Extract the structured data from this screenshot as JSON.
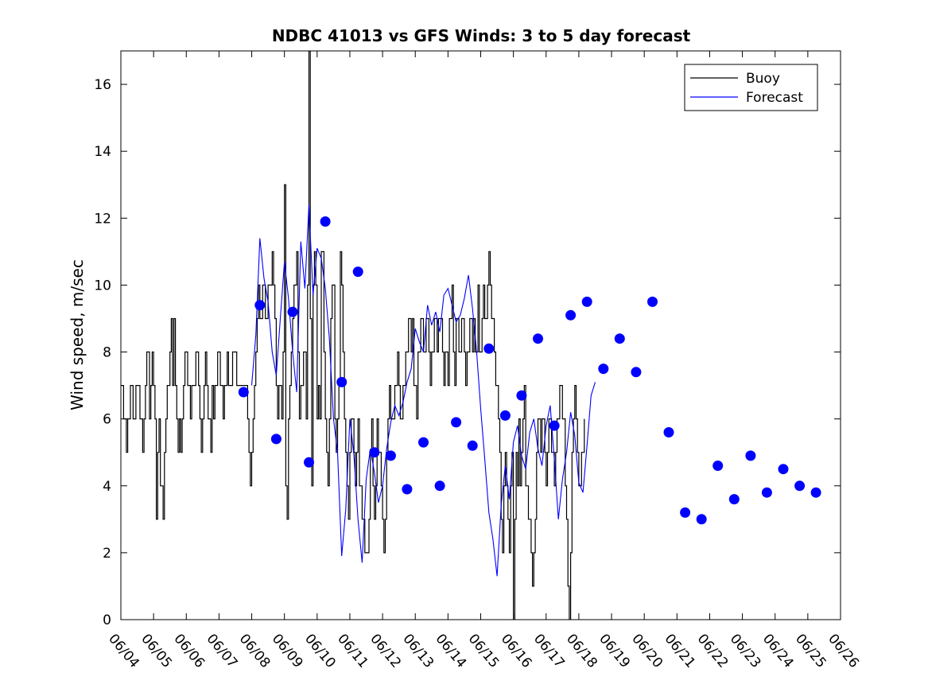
{
  "chart_data": {
    "type": "line",
    "title": "NDBC 41013 vs GFS Winds: 3 to 5 day forecast",
    "xlabel": "",
    "ylabel": "Wind speed, m/sec",
    "xlim": [
      "06/04",
      "06/26"
    ],
    "ylim": [
      0,
      17
    ],
    "x_tick_labels": [
      "06/04",
      "06/05",
      "06/06",
      "06/07",
      "06/08",
      "06/09",
      "06/10",
      "06/11",
      "06/12",
      "06/13",
      "06/14",
      "06/15",
      "06/16",
      "06/17",
      "06/18",
      "06/19",
      "06/20",
      "06/21",
      "06/22",
      "06/23",
      "06/24",
      "06/25",
      "06/26"
    ],
    "y_ticks": [
      0,
      2,
      4,
      6,
      8,
      10,
      12,
      14,
      16
    ],
    "grid": false,
    "legend": {
      "position": "top-right",
      "entries": [
        "Buoy",
        "Forecast"
      ]
    },
    "colors": {
      "buoy": "#000000",
      "forecast": "#0000ff",
      "markers": "#0000ff"
    },
    "series": [
      {
        "name": "Buoy",
        "x_start": "06/04 00:00",
        "step_hours": 1,
        "values": [
          7,
          7,
          6,
          6,
          5,
          6,
          6,
          7,
          7,
          6,
          6,
          7,
          7,
          7,
          6,
          6,
          5,
          6,
          7,
          8,
          8,
          6,
          7,
          8,
          7,
          6,
          3,
          5,
          6,
          4,
          4,
          3,
          5,
          6,
          7,
          7,
          8,
          9,
          7,
          9,
          7,
          6,
          5,
          6,
          5,
          6,
          7,
          8,
          8,
          7,
          7,
          6,
          7,
          7,
          7,
          8,
          8,
          7,
          6,
          5,
          6,
          7,
          8,
          7,
          6,
          6,
          5,
          7,
          6,
          7,
          7,
          8,
          8,
          7,
          7,
          6,
          7,
          7,
          8,
          7,
          7,
          7,
          8,
          8,
          8,
          7,
          7,
          7,
          7,
          7,
          7,
          7,
          7,
          6,
          5,
          4,
          5,
          6,
          7,
          8,
          9,
          10,
          9,
          9,
          10,
          10,
          9,
          9,
          10,
          10,
          10,
          11,
          10,
          9,
          7,
          6,
          7,
          7,
          6,
          8,
          13,
          4,
          3,
          6,
          7,
          8,
          9,
          10,
          10,
          11,
          8,
          6,
          7,
          7,
          8,
          8,
          6,
          10,
          17,
          9,
          4,
          10,
          11,
          10,
          6,
          7,
          6,
          11,
          11,
          8,
          6,
          5,
          4,
          6,
          9,
          10,
          10,
          6,
          5,
          6,
          7,
          11,
          10,
          8,
          6,
          5,
          4,
          3,
          5,
          6,
          6,
          5,
          4,
          5,
          6,
          4,
          4,
          3,
          3,
          2,
          2,
          2,
          3,
          5,
          6,
          4,
          3,
          4,
          6,
          5,
          5,
          4,
          3,
          2,
          3,
          5,
          6,
          7,
          6,
          6,
          6,
          7,
          7,
          8,
          7,
          6,
          6,
          7,
          7,
          8,
          8,
          9,
          9,
          8,
          9,
          7,
          7,
          6,
          8,
          8,
          9,
          9,
          8,
          8,
          9,
          9,
          8,
          7,
          8,
          8,
          9,
          9,
          8,
          9,
          9,
          9,
          8,
          7,
          8,
          8,
          7,
          9,
          9,
          10,
          8,
          7,
          9,
          9,
          8,
          8,
          9,
          9,
          8,
          7,
          8,
          8,
          9,
          9,
          8,
          9,
          8,
          8,
          10,
          8,
          8,
          9,
          10,
          9,
          9,
          10,
          11,
          10,
          9,
          9,
          8,
          7,
          7,
          6,
          5,
          3,
          2,
          4,
          5,
          4,
          3,
          2,
          4,
          5,
          0,
          3,
          5,
          4,
          6,
          4,
          5,
          6,
          7,
          4,
          4,
          3,
          3,
          2,
          1,
          2,
          3,
          5,
          6,
          6,
          5,
          6,
          6,
          5,
          4,
          5,
          6,
          6,
          5,
          5,
          4,
          5,
          6,
          6,
          7,
          7,
          6,
          6,
          4,
          3,
          1,
          0,
          2,
          5,
          6,
          7,
          6,
          5,
          4,
          4,
          5,
          5,
          6
        ]
      },
      {
        "name": "Forecast",
        "x_start": "06/08 00:00",
        "step_hours": 3,
        "values": [
          7.0,
          8.5,
          11.4,
          10.2,
          9.5,
          8.0,
          7.3,
          9.0,
          10.7,
          9.6,
          8.0,
          6.8,
          11.3,
          9.9,
          12.4,
          9.7,
          11.1,
          10.8,
          9.9,
          8.4,
          6.0,
          5.0,
          1.9,
          3.3,
          6.0,
          4.9,
          3.0,
          1.7,
          4.2,
          5.1,
          4.4,
          3.5,
          4.0,
          5.1,
          5.9,
          6.4,
          6.1,
          6.5,
          7.1,
          7.5,
          8.7,
          8.3,
          8.0,
          9.4,
          8.8,
          9.2,
          8.6,
          9.7,
          9.9,
          9.4,
          8.9,
          9.1,
          9.6,
          10.3,
          9.3,
          8.0,
          6.3,
          4.8,
          3.2,
          2.4,
          1.3,
          3.4,
          4.6,
          3.6,
          5.3,
          5.8,
          4.9,
          4.5,
          5.6,
          6.0,
          5.1,
          4.6,
          5.8,
          6.4,
          4.8,
          3.0,
          4.2,
          5.0,
          6.2,
          5.5,
          4.1,
          3.8,
          5.2,
          6.7,
          7.1
        ]
      }
    ],
    "daily_means": {
      "name": "Daily means (markers)",
      "x": [
        "06/07 18:00",
        "06/08 06:00",
        "06/08 18:00",
        "06/09 06:00",
        "06/09 18:00",
        "06/10 06:00",
        "06/10 18:00",
        "06/11 06:00",
        "06/11 18:00",
        "06/12 06:00",
        "06/12 18:00",
        "06/13 06:00",
        "06/13 18:00",
        "06/14 06:00",
        "06/14 18:00",
        "06/15 06:00",
        "06/15 18:00",
        "06/16 06:00",
        "06/16 18:00",
        "06/17 06:00",
        "06/17 18:00",
        "06/18 06:00",
        "06/18 18:00",
        "06/19 06:00",
        "06/19 18:00",
        "06/20 06:00",
        "06/20 18:00",
        "06/21 06:00",
        "06/21 18:00",
        "06/22 06:00",
        "06/22 18:00",
        "06/23 06:00",
        "06/23 18:00",
        "06/24 06:00",
        "06/24 18:00",
        "06/25 06:00"
      ],
      "y": [
        6.8,
        9.4,
        5.4,
        9.2,
        4.7,
        11.9,
        7.1,
        10.4,
        5.0,
        4.9,
        3.9,
        5.3,
        4.0,
        5.9,
        5.2,
        8.1,
        6.1,
        6.7,
        8.4,
        5.8,
        9.1,
        9.5,
        7.5,
        8.4,
        7.4,
        9.5,
        5.6,
        3.2,
        3.0,
        4.6,
        3.6,
        4.9,
        3.8,
        4.5,
        4.0,
        3.8
      ]
    }
  }
}
